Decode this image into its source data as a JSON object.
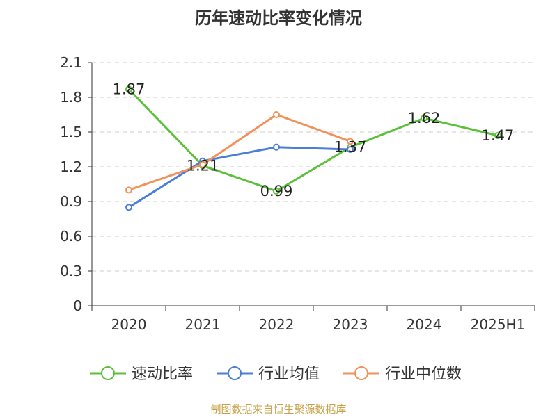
{
  "title": "历年速动比率变化情况",
  "source": "制图数据来自恒生聚源数据库",
  "chart_data": {
    "type": "line",
    "categories": [
      "2020",
      "2021",
      "2022",
      "2023",
      "2024",
      "2025H1"
    ],
    "ylim": [
      0,
      2.1
    ],
    "yticks": [
      "0",
      "0.3",
      "0.6",
      "0.9",
      "1.2",
      "1.5",
      "1.8",
      "2.1"
    ],
    "grid": true,
    "legend_position": "bottom",
    "series": [
      {
        "name": "速动比率",
        "color": "#5cc13a",
        "values": [
          1.87,
          1.21,
          0.99,
          1.37,
          1.62,
          1.47
        ],
        "labels": [
          "1.87",
          "1.21",
          "0.99",
          "1.37",
          "1.62",
          "1.47"
        ]
      },
      {
        "name": "行业均值",
        "color": "#4b7fd6",
        "values": [
          0.85,
          1.25,
          1.37,
          1.35,
          null,
          null
        ]
      },
      {
        "name": "行业中位数",
        "color": "#f2915a",
        "values": [
          1.0,
          1.22,
          1.65,
          1.42,
          null,
          null
        ]
      }
    ]
  }
}
